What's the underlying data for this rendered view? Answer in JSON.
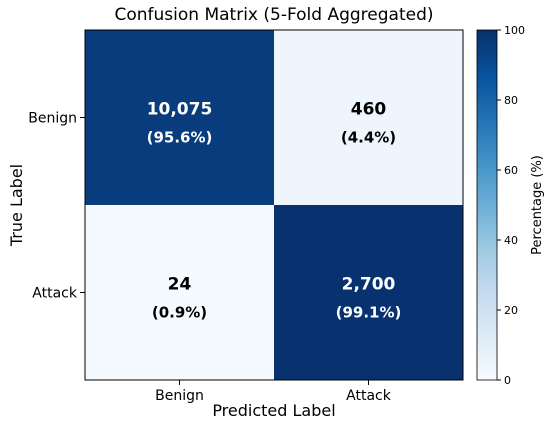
{
  "chart_data": {
    "type": "heatmap",
    "title": "Confusion Matrix (5-Fold Aggregated)",
    "xlabel": "Predicted Label",
    "ylabel": "True Label",
    "row_labels": [
      "Benign",
      "Attack"
    ],
    "col_labels": [
      "Benign",
      "Attack"
    ],
    "counts": [
      [
        "10,075",
        "460"
      ],
      [
        "24",
        "2,700"
      ]
    ],
    "percent_labels": [
      [
        "(95.6%)",
        "(4.4%)"
      ],
      [
        "(0.9%)",
        "(99.1%)"
      ]
    ],
    "percent_values": [
      [
        95.6,
        4.4
      ],
      [
        0.9,
        99.1
      ]
    ],
    "colorbar": {
      "label": "Percentage (%)",
      "range": [
        0,
        100
      ],
      "ticks": [
        "0",
        "20",
        "40",
        "60",
        "80",
        "100"
      ],
      "colormap": "Blues",
      "colors": [
        "#f7fbff",
        "#deebf7",
        "#c6dbef",
        "#9ecae1",
        "#6baed6",
        "#4292c6",
        "#2171b5",
        "#08519c",
        "#08306b"
      ]
    }
  }
}
